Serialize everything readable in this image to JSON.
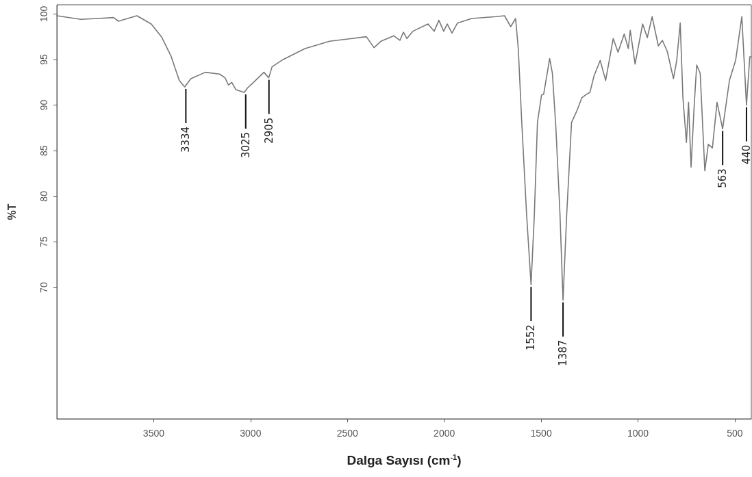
{
  "chart_data": {
    "type": "line",
    "xlabel": "Dalga Sayısı (cm$^{-1}$)",
    "ylabel": "%T",
    "xlim": [
      4000,
      415
    ],
    "ylim": [
      55.6,
      101
    ],
    "xticks": [
      3500,
      3000,
      2500,
      2000,
      1500,
      1000,
      500
    ],
    "yticks": [
      70,
      75,
      80,
      85,
      90,
      95,
      100
    ],
    "grid": false,
    "marker": "none",
    "line_style": "solid",
    "series": [
      {
        "color": "#787878",
        "x": [
          4000,
          3877,
          3788,
          3707,
          3682,
          3587,
          3513,
          3460,
          3411,
          3368,
          3340,
          3308,
          3234,
          3160,
          3132,
          3114,
          3097,
          3076,
          3033,
          3015,
          2994,
          2931,
          2906,
          2889,
          2832,
          2719,
          2592,
          2402,
          2363,
          2327,
          2260,
          2229,
          2211,
          2193,
          2162,
          2084,
          2052,
          2028,
          2003,
          1985,
          1960,
          1932,
          1858,
          1731,
          1689,
          1657,
          1632,
          1618,
          1600,
          1575,
          1552,
          1535,
          1519,
          1498,
          1487,
          1456,
          1442,
          1424,
          1403,
          1387,
          1368,
          1343,
          1315,
          1290,
          1265,
          1248,
          1227,
          1195,
          1167,
          1128,
          1103,
          1071,
          1050,
          1040,
          1015,
          976,
          952,
          927,
          895,
          874,
          849,
          817,
          800,
          782,
          768,
          750,
          739,
          726,
          711,
          697,
          679,
          655,
          637,
          616,
          592,
          563,
          528,
          496,
          464,
          440,
          423,
          415
        ],
        "values": [
          99.8,
          99.4,
          99.5,
          99.6,
          99.2,
          99.8,
          98.9,
          97.5,
          95.4,
          92.7,
          92.0,
          92.9,
          93.6,
          93.4,
          93.0,
          92.2,
          92.5,
          91.7,
          91.4,
          91.9,
          92.3,
          93.6,
          93.0,
          94.2,
          95.0,
          96.2,
          97.0,
          97.5,
          96.3,
          97.0,
          97.6,
          97.1,
          98.0,
          97.3,
          98.1,
          98.9,
          98.1,
          99.3,
          98.1,
          98.9,
          97.9,
          99.0,
          99.5,
          99.7,
          99.8,
          98.6,
          99.5,
          96.2,
          88.1,
          78.0,
          70.3,
          78.0,
          88.1,
          91.1,
          91.2,
          95.1,
          93.5,
          87.6,
          78.2,
          68.6,
          78.0,
          88.1,
          89.4,
          90.8,
          91.2,
          91.4,
          93.2,
          94.9,
          92.7,
          97.3,
          95.8,
          97.8,
          96.2,
          98.2,
          94.5,
          98.9,
          97.4,
          99.7,
          96.5,
          97.1,
          95.9,
          92.9,
          94.9,
          99.0,
          90.8,
          85.9,
          90.3,
          83.2,
          89.5,
          94.4,
          93.5,
          82.8,
          85.7,
          85.3,
          90.3,
          87.4,
          92.7,
          94.9,
          99.7,
          90.0,
          95.3,
          95.3
        ]
      }
    ],
    "annotations": [
      {
        "text": "3334",
        "x": 3334,
        "y": 92.0
      },
      {
        "text": "3025",
        "x": 3025,
        "y": 91.4
      },
      {
        "text": "2905",
        "x": 2905,
        "y": 93.0
      },
      {
        "text": "1552",
        "x": 1552,
        "y": 70.3
      },
      {
        "text": "1387",
        "x": 1387,
        "y": 68.6
      },
      {
        "text": "563",
        "x": 563,
        "y": 87.4
      },
      {
        "text": "440",
        "x": 440,
        "y": 90.0
      }
    ]
  }
}
